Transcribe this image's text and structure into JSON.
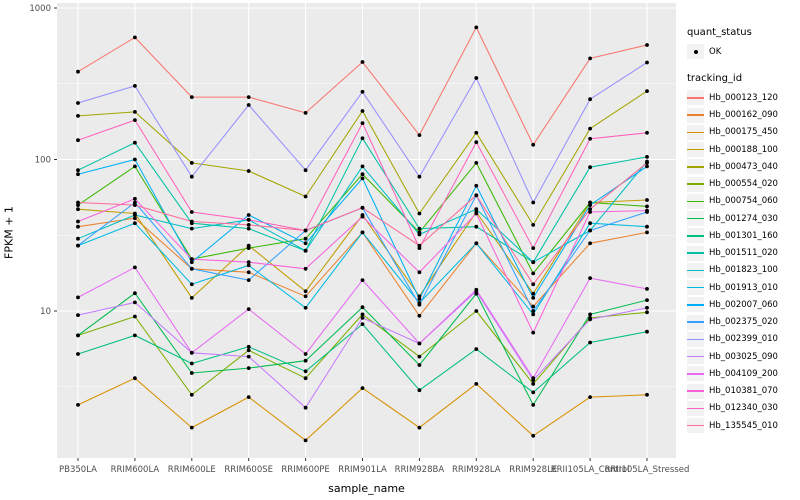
{
  "figure": {
    "background": "#FFFFFF",
    "panel_background": "#EBEBEB",
    "grid_color": "#FFFFFF",
    "axis_text_color": "#4D4D4D",
    "tick_color": "#333333",
    "point_color": "#000000",
    "legend_key_background": "#F2F2F2"
  },
  "chart_data": {
    "type": "line",
    "title": "",
    "xlabel": "sample_name",
    "ylabel": "FPKM + 1",
    "y_scale": "log10",
    "ylim": [
      1,
      1000
    ],
    "y_ticks": [
      10,
      100,
      1000
    ],
    "y_tick_labels": [
      "10",
      "100",
      "1000"
    ],
    "y_minor_ticks": [
      3.162,
      31.62,
      316.2
    ],
    "grid": "on",
    "legend_position": "right",
    "categories": [
      "PB350LA",
      "RRIM600LA",
      "RRIM600LE",
      "RRIM600SE",
      "RRIM600PE",
      "RRIM901LA",
      "RRIM928BA",
      "RRIM928LA",
      "RRIM928LE",
      "RRII105LA_Control",
      "RRII105LA_Stressed"
    ],
    "series": [
      {
        "name": "Hb_000123_120",
        "color": "#F8766D",
        "values": [
          380,
          640,
          258,
          258,
          203,
          440,
          145,
          745,
          125,
          465,
          570
        ]
      },
      {
        "name": "Hb_000162_090",
        "color": "#EA8331",
        "values": [
          36,
          41,
          19,
          18,
          12.5,
          33,
          9.3,
          28,
          10.7,
          28,
          33
        ]
      },
      {
        "name": "Hb_000175_450",
        "color": "#D89000",
        "values": [
          2.4,
          3.6,
          1.7,
          2.7,
          1.4,
          3.1,
          1.7,
          3.3,
          1.5,
          2.7,
          2.8
        ]
      },
      {
        "name": "Hb_000188_100",
        "color": "#C09B00",
        "values": [
          47,
          44,
          12.2,
          27,
          13.5,
          43,
          12.5,
          45,
          13,
          52,
          54
        ]
      },
      {
        "name": "Hb_000473_040",
        "color": "#A3A500",
        "values": [
          194,
          206,
          95,
          84,
          57,
          209,
          44,
          150,
          37,
          160,
          283
        ]
      },
      {
        "name": "Hb_000554_020",
        "color": "#7CAE00",
        "values": [
          6.9,
          9.2,
          2.8,
          5.5,
          3.6,
          9.5,
          5.0,
          10,
          3.3,
          9.0,
          9.8
        ]
      },
      {
        "name": "Hb_000754_060",
        "color": "#39B600",
        "values": [
          50,
          90,
          22,
          26,
          30,
          80,
          33,
          95,
          17.7,
          52,
          49
        ]
      },
      {
        "name": "Hb_001274_030",
        "color": "#00BB4E",
        "values": [
          6.9,
          13.1,
          3.9,
          4.2,
          4.7,
          10.6,
          4.4,
          13,
          2.4,
          9.5,
          11.8
        ]
      },
      {
        "name": "Hb_001301_160",
        "color": "#00BF7D",
        "values": [
          5.2,
          6.9,
          4.5,
          5.8,
          4.0,
          8.2,
          3.0,
          5.6,
          2.9,
          6.2,
          7.3
        ]
      },
      {
        "name": "Hb_001511_020",
        "color": "#00C1A3",
        "values": [
          85,
          129,
          38,
          35,
          25,
          138,
          35,
          36,
          21,
          89,
          104
        ]
      },
      {
        "name": "Hb_001823_100",
        "color": "#00BFC4",
        "values": [
          30,
          43,
          35,
          40,
          25,
          90,
          32,
          47,
          21,
          34,
          97
        ]
      },
      {
        "name": "Hb_001913_010",
        "color": "#00BAE0",
        "values": [
          27,
          38,
          15,
          20,
          10.5,
          33,
          11.3,
          28,
          9.5,
          38,
          36
        ]
      },
      {
        "name": "Hb_002007_060",
        "color": "#00B0F6",
        "values": [
          80,
          100,
          21,
          43,
          28,
          75,
          12,
          67,
          12.2,
          50,
          90
        ]
      },
      {
        "name": "Hb_002375_020",
        "color": "#35A2FF",
        "values": [
          27,
          52,
          19,
          16,
          34,
          48,
          11,
          58,
          10,
          34,
          45
        ]
      },
      {
        "name": "Hb_002399_010",
        "color": "#9590FF",
        "values": [
          236,
          306,
          77,
          229,
          85,
          280,
          77,
          345,
          52,
          250,
          437
        ]
      },
      {
        "name": "Hb_003025_090",
        "color": "#C77CFF",
        "values": [
          9.4,
          11.4,
          5.3,
          5.0,
          2.3,
          9.0,
          6.1,
          13.5,
          3.5,
          8.8,
          10.5
        ]
      },
      {
        "name": "Hb_004109_200",
        "color": "#E76BF3",
        "values": [
          12.3,
          19.4,
          5.3,
          10.3,
          5.2,
          16,
          6.1,
          13.8,
          3.6,
          16.5,
          14
        ]
      },
      {
        "name": "Hb_010381_070",
        "color": "#FA62DB",
        "values": [
          39,
          55,
          22,
          21,
          19,
          42,
          18,
          44,
          7.2,
          45,
          46
        ]
      },
      {
        "name": "Hb_012340_030",
        "color": "#FF62BC",
        "values": [
          134,
          182,
          45,
          40,
          34,
          174,
          26,
          130,
          26,
          137,
          150
        ]
      },
      {
        "name": "Hb_135545_010",
        "color": "#FF6A98",
        "values": [
          52,
          50,
          39,
          37,
          34,
          48,
          27,
          58,
          15,
          47,
          95
        ]
      }
    ],
    "legend": {
      "quant_status_title": "quant_status",
      "quant_status_items": [
        {
          "label": "OK",
          "marker": "point",
          "color": "#000000"
        }
      ],
      "tracking_title": "tracking_id"
    }
  }
}
